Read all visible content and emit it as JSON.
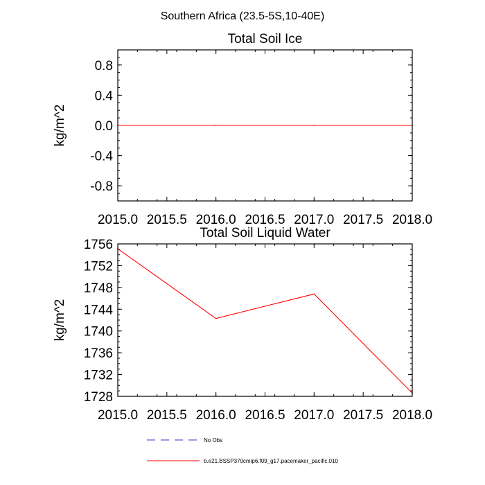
{
  "figure": {
    "title": "Southern Africa (23.5-5S,10-40E)"
  },
  "chart_data": [
    {
      "type": "line",
      "title": "Total Soil Ice",
      "xlabel": "",
      "ylabel": "kg/m^2",
      "xlim": [
        2015.0,
        2018.0
      ],
      "ylim": [
        -1.0,
        1.0
      ],
      "x_ticks": [
        2015.0,
        2015.5,
        2016.0,
        2016.5,
        2017.0,
        2017.5,
        2018.0
      ],
      "x_tick_labels": [
        "2015.0",
        "2015.5",
        "2016.0",
        "2016.5",
        "2017.0",
        "2017.5",
        "2018.0"
      ],
      "y_ticks": [
        0.8,
        0.4,
        0.0,
        -0.4,
        -0.8
      ],
      "y_tick_labels": [
        "0.8",
        "0.4",
        "0.0",
        "-0.4",
        "-0.8"
      ],
      "grid": false,
      "series": [
        {
          "name": "b.e21.BSSP370cmip6.f09_g17.pacemaker_pacific.010",
          "color": "#ff0000",
          "x": [
            2015.0,
            2016.0,
            2017.0,
            2018.0
          ],
          "values": [
            0.0,
            0.0,
            0.0,
            0.0
          ]
        }
      ]
    },
    {
      "type": "line",
      "title": "Total Soil Liquid Water",
      "xlabel": "",
      "ylabel": "kg/m^2",
      "xlim": [
        2015.0,
        2018.0
      ],
      "ylim": [
        1728,
        1756
      ],
      "x_ticks": [
        2015.0,
        2015.5,
        2016.0,
        2016.5,
        2017.0,
        2017.5,
        2018.0
      ],
      "x_tick_labels": [
        "2015.0",
        "2015.5",
        "2016.0",
        "2016.5",
        "2017.0",
        "2017.5",
        "2018.0"
      ],
      "y_ticks": [
        1756,
        1752,
        1748,
        1744,
        1740,
        1736,
        1732,
        1728
      ],
      "y_tick_labels": [
        "1756",
        "1752",
        "1748",
        "1744",
        "1740",
        "1736",
        "1732",
        "1728"
      ],
      "grid": false,
      "series": [
        {
          "name": "b.e21.BSSP370cmip6.f09_g17.pacemaker_pacific.010",
          "color": "#ff0000",
          "x": [
            2015.0,
            2016.0,
            2017.0,
            2018.0
          ],
          "values": [
            1755.1,
            1742.3,
            1746.8,
            1728.6
          ]
        }
      ]
    }
  ],
  "legend": {
    "placement": "bottom-center",
    "entries": [
      {
        "label": "No Obs",
        "color": "#3333cc",
        "style": "dashed"
      },
      {
        "label": "b.e21.BSSP370cmip6.f09_g17.pacemaker_pacific.010",
        "color": "#ff0000",
        "style": "solid"
      }
    ]
  }
}
